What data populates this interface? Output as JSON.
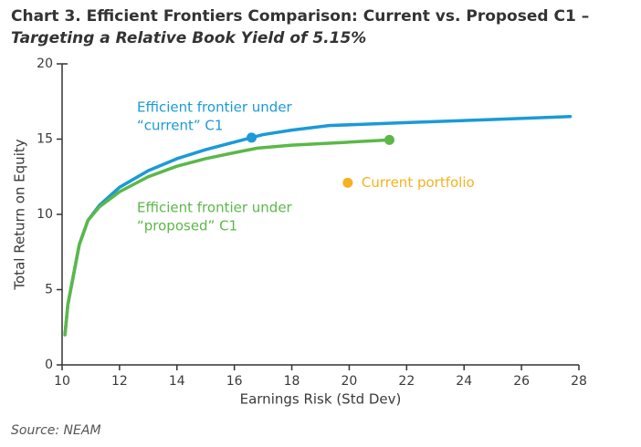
{
  "chart_data": {
    "type": "line",
    "title": "Chart 3. Efficient Frontiers Comparison: Current vs. Proposed C1 –",
    "subtitle": "Targeting a Relative Book Yield of 5.15%",
    "x_label": "Earnings Risk (Std Dev)",
    "y_label": "Total Return on Equity",
    "source": "Source: NEAM",
    "xlim": [
      10,
      28
    ],
    "xticks": [
      10,
      12,
      14,
      16,
      18,
      20,
      22,
      24,
      26,
      28
    ],
    "ylim": [
      0,
      20
    ],
    "yticks": [
      0,
      5,
      10,
      15,
      20
    ],
    "grid": false,
    "series": [
      {
        "label": [
          "Efficient frontier under",
          "“current” C1"
        ],
        "color": "#1b9ad7",
        "x": [
          10.1,
          10.2,
          10.4,
          10.6,
          10.9,
          11.3,
          12,
          13,
          14,
          15,
          16,
          16.6,
          17,
          18,
          19.3,
          22,
          25,
          27.7
        ],
        "y": [
          2,
          4,
          6,
          8,
          9.6,
          10.6,
          11.8,
          12.9,
          13.7,
          14.3,
          14.8,
          15.1,
          15.3,
          15.6,
          15.9,
          16.1,
          16.3,
          16.5
        ],
        "highlight": {
          "x": 16.6,
          "y": 15.1
        }
      },
      {
        "label": [
          "Efficient frontier under",
          "“proposed” C1"
        ],
        "color": "#5bb848",
        "x": [
          10.1,
          10.2,
          10.4,
          10.6,
          10.9,
          11.3,
          12,
          13,
          14,
          15,
          16,
          16.8,
          18,
          20,
          21.4
        ],
        "y": [
          2,
          4,
          6,
          8,
          9.6,
          10.5,
          11.5,
          12.5,
          13.2,
          13.7,
          14.1,
          14.4,
          14.6,
          14.8,
          14.95
        ],
        "highlight": {
          "x": 21.4,
          "y": 14.95
        }
      }
    ],
    "points": [
      {
        "name": "Current portfolio",
        "color": "#f5b120",
        "x": 19.95,
        "y": 12.1
      }
    ]
  }
}
